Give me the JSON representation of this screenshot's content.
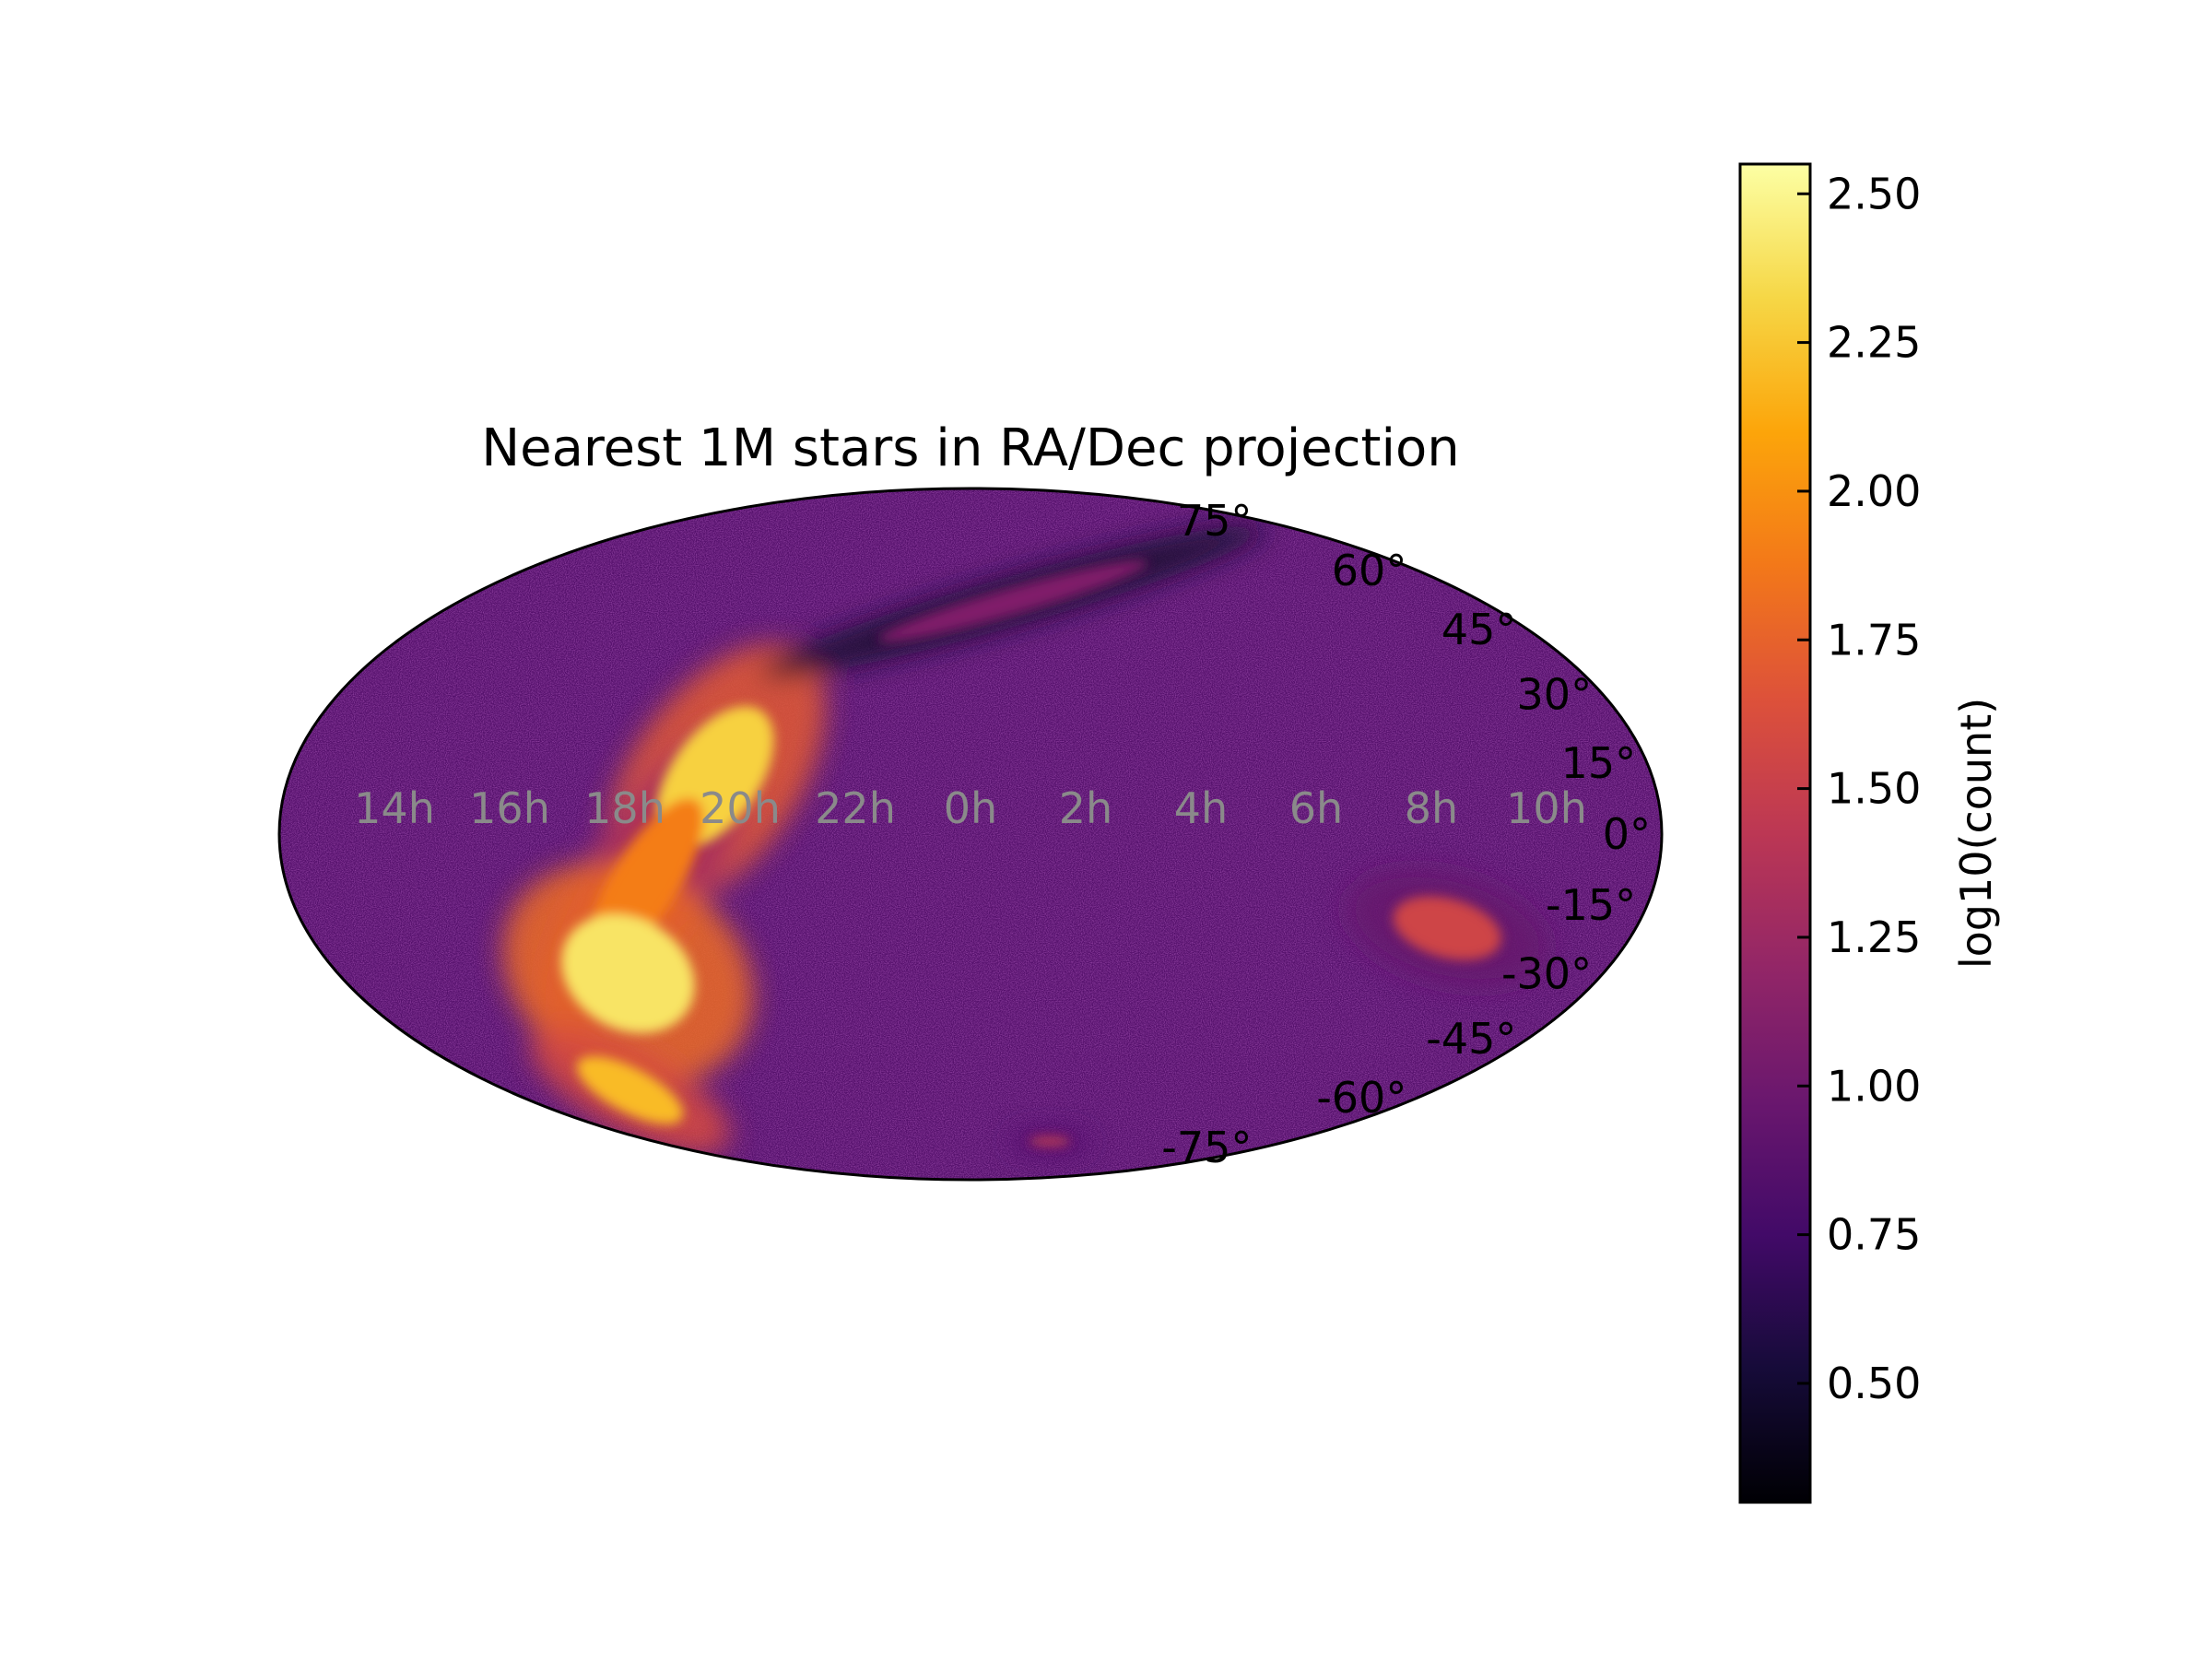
{
  "chart_data": {
    "type": "heatmap",
    "projection": "mollweide",
    "title": "Nearest 1M stars in RA/Dec projection",
    "x_tick_labels": [
      "14h",
      "16h",
      "18h",
      "20h",
      "22h",
      "0h",
      "2h",
      "4h",
      "6h",
      "8h",
      "10h"
    ],
    "x_tick_ra_hours": [
      14,
      16,
      18,
      20,
      22,
      0,
      2,
      4,
      6,
      8,
      10
    ],
    "y_tick_labels": [
      "75°",
      "60°",
      "45°",
      "30°",
      "15°",
      "0°",
      "-15°",
      "-30°",
      "-45°",
      "-60°",
      "-75°"
    ],
    "y_tick_dec_degrees": [
      75,
      60,
      45,
      30,
      15,
      0,
      -15,
      -30,
      -45,
      -60,
      -75
    ],
    "x_center_ra_hours": 0,
    "colorbar": {
      "label": "log10(count)",
      "colormap": "inferno",
      "range": [
        0.3,
        2.55
      ],
      "tick_labels": [
        "0.50",
        "0.75",
        "1.00",
        "1.25",
        "1.50",
        "1.75",
        "2.00",
        "2.25",
        "2.50"
      ],
      "tick_values": [
        0.5,
        0.75,
        1.0,
        1.25,
        1.5,
        1.75,
        2.0,
        2.25,
        2.5
      ]
    },
    "background_level": 0.85,
    "features": [
      {
        "kind": "galactic-plane-north",
        "ra_hours": 19.5,
        "dec_degrees": 12,
        "level": 2.3
      },
      {
        "kind": "galactic-plane-equator",
        "ra_hours": 18.3,
        "dec_degrees": -10,
        "level": 1.9
      },
      {
        "kind": "galactic-bulge",
        "ra_hours": 17.5,
        "dec_degrees": -30,
        "level": 2.4
      },
      {
        "kind": "galactic-plane-south",
        "ra_hours": 15.2,
        "dec_degrees": -58,
        "level": 2.2
      },
      {
        "kind": "scan-patch",
        "ra_hours": 8.6,
        "dec_degrees": -20,
        "level": 1.55
      },
      {
        "kind": "northern-arc",
        "ra_hours": 1.0,
        "dec_degrees": 52,
        "level": 1.1
      },
      {
        "kind": "southern-spot",
        "ra_hours": 3.0,
        "dec_degrees": -73,
        "level": 1.4
      }
    ],
    "grid": false,
    "legend": "none"
  }
}
